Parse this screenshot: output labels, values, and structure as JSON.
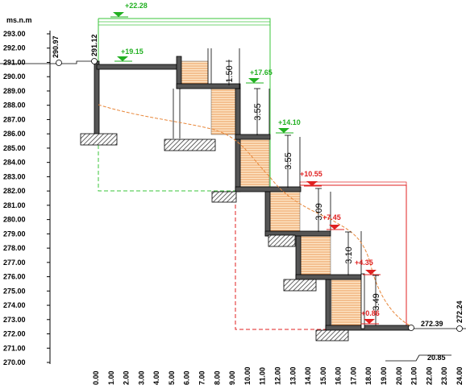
{
  "axis_label": "ms.n.m",
  "y_labels": [
    "293.00",
    "292.00",
    "291.00",
    "290.00",
    "289.00",
    "288.00",
    "287.00",
    "286.00",
    "285.00",
    "284.00",
    "283.00",
    "282.00",
    "281.00",
    "280.00",
    "279.00",
    "278.00",
    "277.00",
    "276.00",
    "275.00",
    "274.00",
    "273.00",
    "272.00",
    "271.00",
    "270.00"
  ],
  "x_labels": [
    "0.00",
    "1.00",
    "2.00",
    "3.00",
    "4.00",
    "5.00",
    "6.00",
    "7.00",
    "8.00",
    "9.00",
    "10.00",
    "11.00",
    "12.00",
    "13.00",
    "14.00",
    "15.00",
    "16.00",
    "17.00",
    "18.00",
    "19.00",
    "20.00",
    "21.00",
    "22.00",
    "23.00",
    "24.00"
  ],
  "green_levels": [
    "+22.28",
    "+19.15",
    "+17.65",
    "+14.10"
  ],
  "red_levels": [
    "+10.55",
    "+7.45",
    "+4.35",
    "+0.86"
  ],
  "ground_levels": {
    "left_1": "290.97",
    "left_2": "291.12",
    "right_1": "272.39",
    "right_2": "272.24",
    "distance": "20.85"
  },
  "dimensions": [
    "1.50",
    "3.55",
    "3.55",
    "3.09",
    "3.10",
    "3.49"
  ]
}
